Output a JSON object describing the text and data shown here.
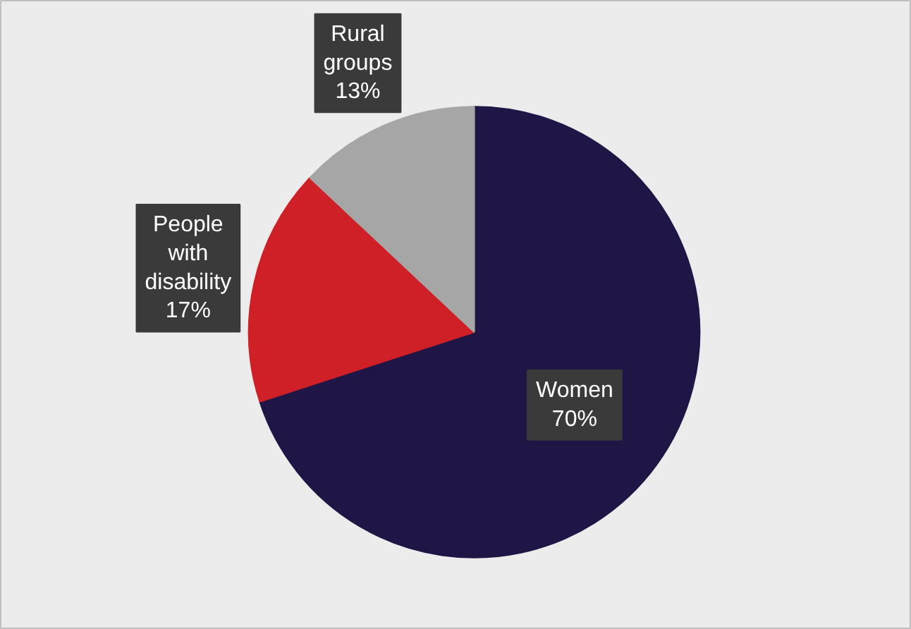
{
  "chart_data": {
    "type": "pie",
    "categories": [
      "Women",
      "People with disability",
      "Rural groups"
    ],
    "values": [
      70,
      17,
      13
    ],
    "colors": [
      "#1f1646",
      "#d02027",
      "#a6a6a6"
    ],
    "value_labels": [
      "70%",
      "17%",
      "13%"
    ]
  }
}
